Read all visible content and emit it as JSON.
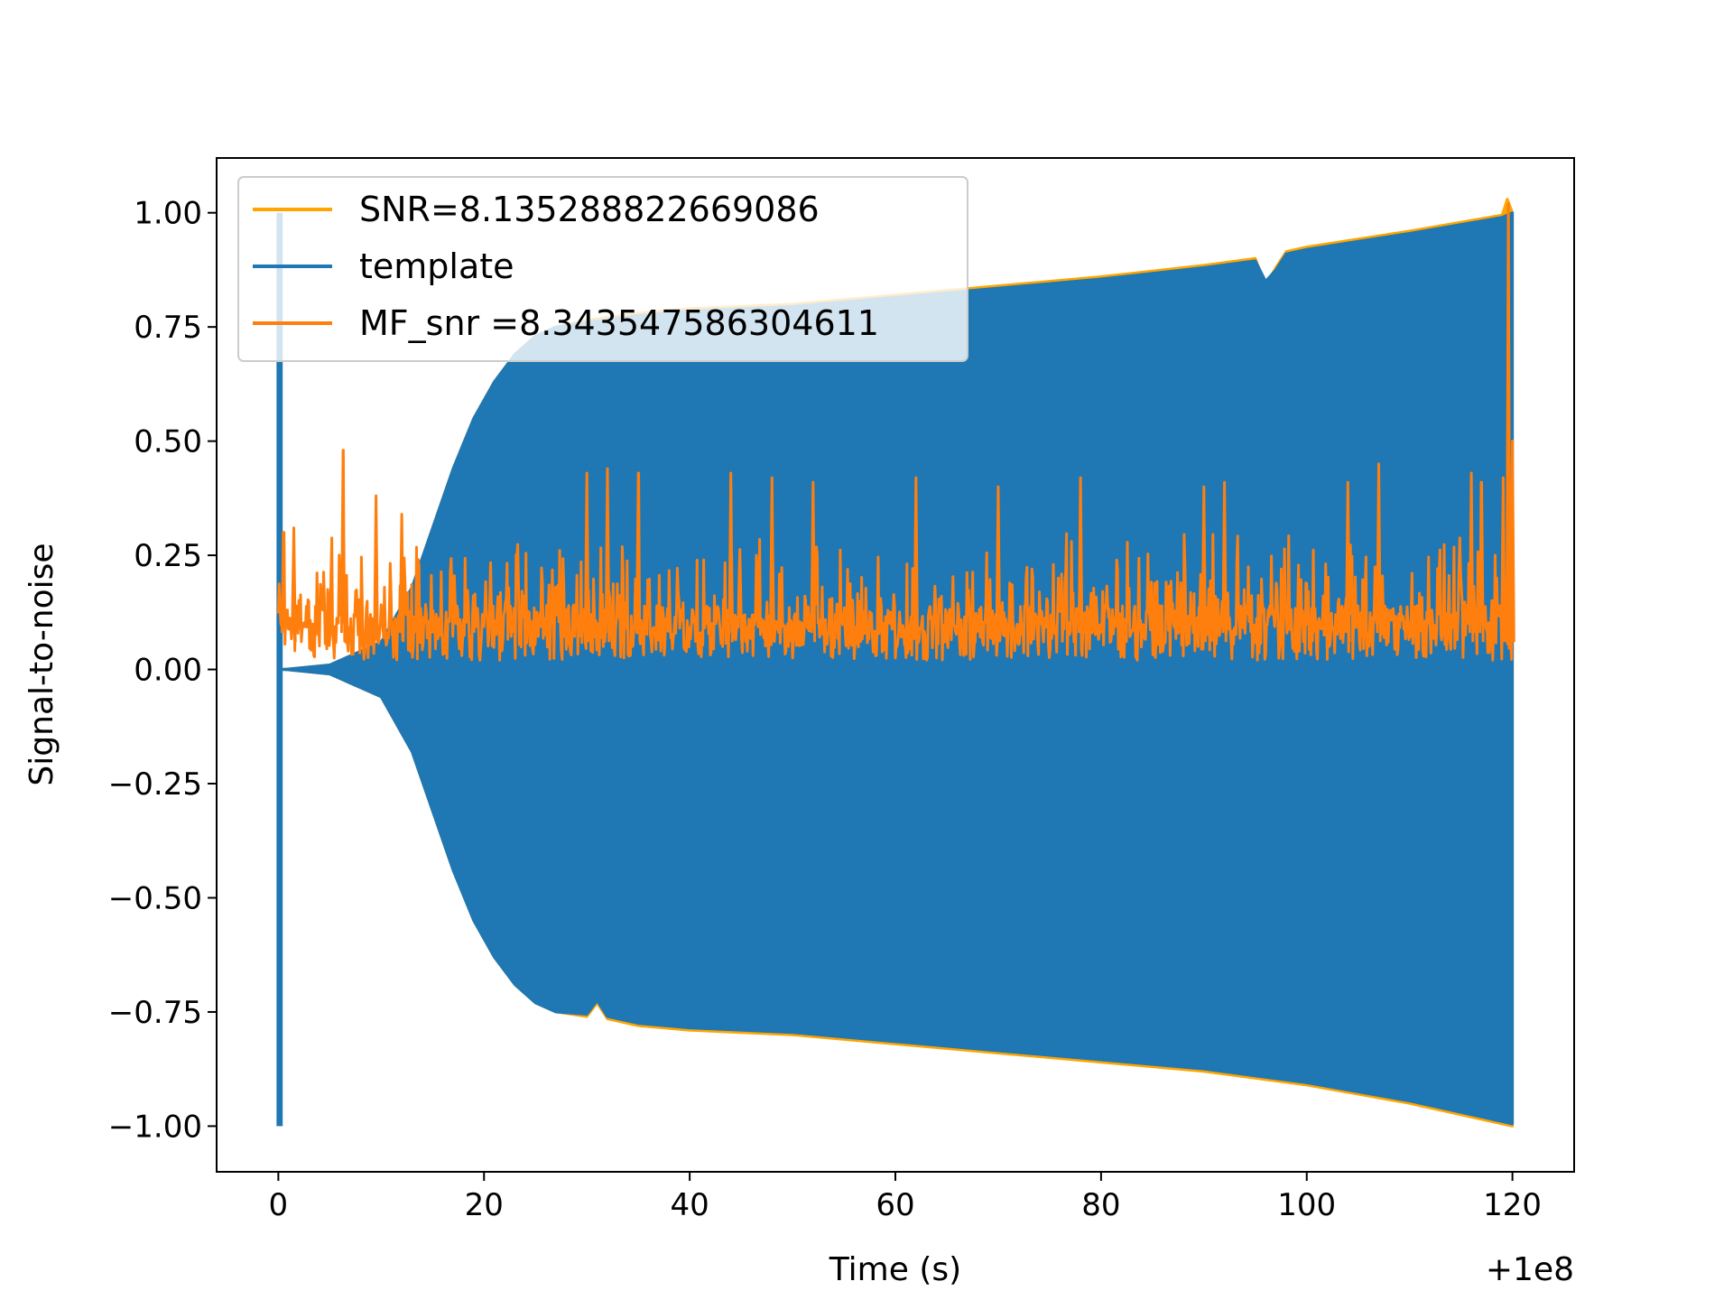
{
  "chart_data": {
    "type": "line",
    "title": "",
    "xlabel": "Time (s)",
    "ylabel": "Signal-to-noise",
    "x_offset_label": "+1e8",
    "xlim": [
      -6.0,
      126.0
    ],
    "ylim": [
      -1.1,
      1.12
    ],
    "x_ticks": [
      0,
      20,
      40,
      60,
      80,
      100,
      120
    ],
    "x_tick_labels": [
      "0",
      "20",
      "40",
      "60",
      "80",
      "100",
      "120"
    ],
    "y_ticks": [
      1.0,
      0.75,
      0.5,
      0.25,
      0.0,
      -0.25,
      -0.5,
      -0.75,
      -1.0
    ],
    "y_tick_labels": [
      "1.00",
      "0.75",
      "0.50",
      "0.25",
      "0.00",
      "−0.25",
      "−0.50",
      "−0.75",
      "−1.00"
    ],
    "grid": false,
    "legend": "upper-left",
    "series": [
      {
        "name": "SNR=8.135288822669086",
        "color": "#ffa500",
        "kind": "envelope",
        "upper": {
          "x": [
            0.3,
            1,
            5,
            10,
            13,
            15,
            17,
            19,
            21,
            23,
            25,
            27,
            30,
            35,
            40,
            50,
            60,
            70,
            80,
            90,
            95,
            96,
            97,
            98,
            100,
            110,
            119,
            119.5,
            120
          ],
          "y": [
            0.0,
            0.001,
            0.01,
            0.06,
            0.18,
            0.31,
            0.44,
            0.55,
            0.63,
            0.69,
            0.73,
            0.75,
            0.765,
            0.78,
            0.79,
            0.8,
            0.82,
            0.84,
            0.86,
            0.885,
            0.9,
            0.84,
            0.88,
            0.915,
            0.925,
            0.96,
            0.995,
            1.03,
            1.0
          ]
        },
        "lower": {
          "x": [
            0.3,
            1,
            5,
            10,
            13,
            15,
            17,
            19,
            21,
            23,
            25,
            27,
            30,
            31,
            32,
            35,
            40,
            50,
            60,
            70,
            80,
            90,
            100,
            110,
            120
          ],
          "y": [
            0.0,
            -0.001,
            -0.01,
            -0.06,
            -0.18,
            -0.31,
            -0.44,
            -0.55,
            -0.63,
            -0.69,
            -0.73,
            -0.75,
            -0.76,
            -0.73,
            -0.765,
            -0.78,
            -0.79,
            -0.8,
            -0.82,
            -0.84,
            -0.86,
            -0.88,
            -0.91,
            -0.95,
            -1.0
          ]
        }
      },
      {
        "name": "template",
        "color": "#1f77b4",
        "kind": "oscillation-band",
        "initial_burst": {
          "x": [
            0.0,
            0.6
          ],
          "ylim": [
            -1.0,
            1.0
          ]
        },
        "upper": {
          "x": [
            0.3,
            1,
            5,
            10,
            13,
            15,
            17,
            19,
            21,
            23,
            25,
            27,
            30,
            35,
            40,
            50,
            60,
            70,
            80,
            90,
            95,
            96,
            97,
            98,
            100,
            110,
            119,
            120
          ],
          "y": [
            0.0,
            0.001,
            0.01,
            0.06,
            0.18,
            0.31,
            0.44,
            0.55,
            0.63,
            0.69,
            0.73,
            0.75,
            0.76,
            0.775,
            0.785,
            0.795,
            0.815,
            0.835,
            0.855,
            0.88,
            0.895,
            0.85,
            0.875,
            0.91,
            0.92,
            0.955,
            0.99,
            1.0
          ]
        },
        "lower": {
          "x": [
            0.3,
            1,
            5,
            10,
            13,
            15,
            17,
            19,
            21,
            23,
            25,
            27,
            30,
            31,
            32,
            35,
            40,
            50,
            60,
            70,
            80,
            90,
            100,
            110,
            120
          ],
          "y": [
            0.0,
            -0.001,
            -0.01,
            -0.06,
            -0.18,
            -0.31,
            -0.44,
            -0.55,
            -0.63,
            -0.69,
            -0.73,
            -0.75,
            -0.755,
            -0.725,
            -0.76,
            -0.775,
            -0.785,
            -0.795,
            -0.815,
            -0.835,
            -0.855,
            -0.875,
            -0.905,
            -0.945,
            -0.995
          ]
        }
      },
      {
        "name": " MF_snr =8.343547586304611",
        "color": "#ff7f0e",
        "kind": "noise-trace",
        "baseline_range": [
          0.0,
          0.28
        ],
        "peaks": {
          "x": [
            0.5,
            1.5,
            6.3,
            9.5,
            12,
            30,
            32,
            35,
            44,
            48,
            52,
            62,
            70,
            78,
            90,
            92,
            104,
            107,
            116,
            117,
            119.1,
            119.6,
            120
          ],
          "y": [
            0.3,
            0.31,
            0.48,
            0.38,
            0.34,
            0.43,
            0.44,
            0.43,
            0.43,
            0.42,
            0.41,
            0.42,
            0.4,
            0.42,
            0.4,
            0.41,
            0.41,
            0.45,
            0.43,
            0.41,
            0.42,
            1.02,
            0.5
          ]
        }
      }
    ]
  }
}
